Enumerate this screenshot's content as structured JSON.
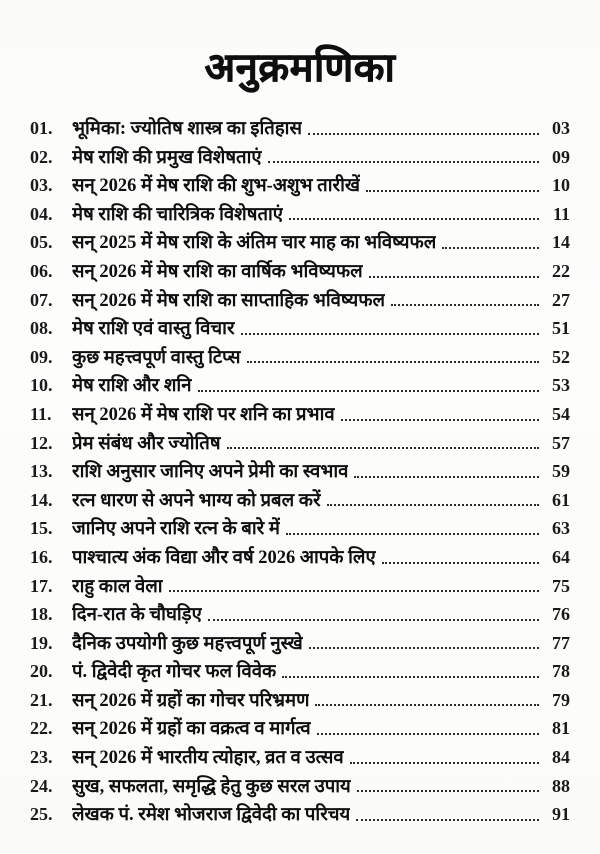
{
  "toc": {
    "title": "अनुक्रमणिका",
    "entries": [
      {
        "num": "01.",
        "title": "भूमिका: ज्योतिष शास्त्र का इतिहास",
        "page": "03"
      },
      {
        "num": "02.",
        "title": "मेष राशि की प्रमुख विशेषताएं",
        "page": "09"
      },
      {
        "num": "03.",
        "title": "सन् 2026 में मेष राशि की शुभ-अशुभ तारीखें",
        "page": "10"
      },
      {
        "num": "04.",
        "title": "मेष राशि की चारित्रिक विशेषताएं",
        "page": "11"
      },
      {
        "num": "05.",
        "title": "सन् 2025 में मेष राशि के अंतिम चार माह का भविष्यफल",
        "page": "14"
      },
      {
        "num": "06.",
        "title": "सन् 2026 में मेष राशि का वार्षिक भविष्यफल",
        "page": "22"
      },
      {
        "num": "07.",
        "title": "सन् 2026 में मेष राशि का साप्ताहिक भविष्यफल",
        "page": "27"
      },
      {
        "num": "08.",
        "title": "मेष राशि एवं वास्तु विचार",
        "page": "51"
      },
      {
        "num": "09.",
        "title": "कुछ महत्त्वपूर्ण वास्तु टिप्स",
        "page": "52"
      },
      {
        "num": "10.",
        "title": "मेष राशि और शनि",
        "page": "53"
      },
      {
        "num": "11.",
        "title": "सन् 2026 में मेष राशि पर शनि का प्रभाव",
        "page": "54"
      },
      {
        "num": "12.",
        "title": "प्रेम संबंध और ज्योतिष",
        "page": "57"
      },
      {
        "num": "13.",
        "title": "राशि अनुसार जानिए अपने प्रेमी का स्वभाव",
        "page": "59"
      },
      {
        "num": "14.",
        "title": "रत्न धारण से अपने भाग्य को प्रबल करें",
        "page": "61"
      },
      {
        "num": "15.",
        "title": "जानिए अपने राशि रत्न के बारे में",
        "page": "63"
      },
      {
        "num": "16.",
        "title": "पाश्चात्य अंक विद्या और वर्ष 2026 आपके लिए",
        "page": "64"
      },
      {
        "num": "17.",
        "title": "राहु काल वेला",
        "page": "75"
      },
      {
        "num": "18.",
        "title": "दिन-रात के चौघड़िए",
        "page": "76"
      },
      {
        "num": "19.",
        "title": "दैनिक उपयोगी कुछ महत्त्वपूर्ण नुस्खे",
        "page": "77"
      },
      {
        "num": "20.",
        "title": "पं. द्विवेदी कृत गोचर फल विवेक",
        "page": "78"
      },
      {
        "num": "21.",
        "title": "सन् 2026 में ग्रहों का गोचर परिभ्रमण",
        "page": "79"
      },
      {
        "num": "22.",
        "title": "सन् 2026 में ग्रहों का वक्रत्व व मार्गत्व",
        "page": "81"
      },
      {
        "num": "23.",
        "title": "सन् 2026 में भारतीय त्योहार, व्रत व उत्सव",
        "page": "84"
      },
      {
        "num": "24.",
        "title": "सुख, सफलता, समृद्धि हेतु कुछ सरल उपाय",
        "page": "88"
      },
      {
        "num": "25.",
        "title": "लेखक पं. रमेश भोजराज द्विवेदी का परिचय",
        "page": "91"
      }
    ]
  }
}
